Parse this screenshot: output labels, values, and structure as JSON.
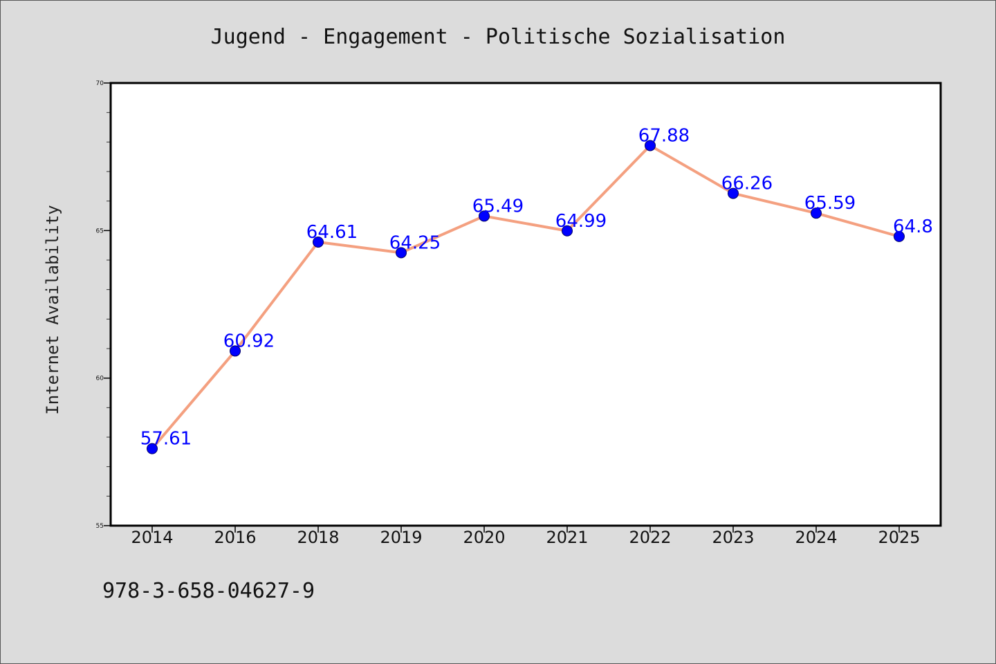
{
  "footnote": "978-3-658-04627-9",
  "chart_data": {
    "type": "line",
    "title": "Jugend - Engagement - Politische Sozialisation",
    "xlabel": "",
    "ylabel": "Internet Availability",
    "categories": [
      "2014",
      "2016",
      "2018",
      "2019",
      "2020",
      "2021",
      "2022",
      "2023",
      "2024",
      "2025"
    ],
    "series": [
      {
        "values": [
          57.61,
          60.92,
          64.61,
          64.25,
          65.49,
          64.99,
          67.88,
          66.26,
          65.59,
          64.8
        ],
        "labels": [
          "57.61",
          "60.92",
          "64.61",
          "64.25",
          "65.49",
          "64.99",
          "67.88",
          "66.26",
          "65.59",
          "64.8"
        ],
        "line_color": "#f4a080",
        "marker_color": "#0000ff"
      }
    ],
    "ylim": [
      55,
      70
    ],
    "yticks": [
      55,
      60,
      65,
      70
    ],
    "ytick_labels": [
      "55",
      "60",
      "65",
      "70"
    ],
    "grid": false,
    "legend": "none",
    "background": "#ffffff",
    "figure_background": "#dcdcdc"
  }
}
